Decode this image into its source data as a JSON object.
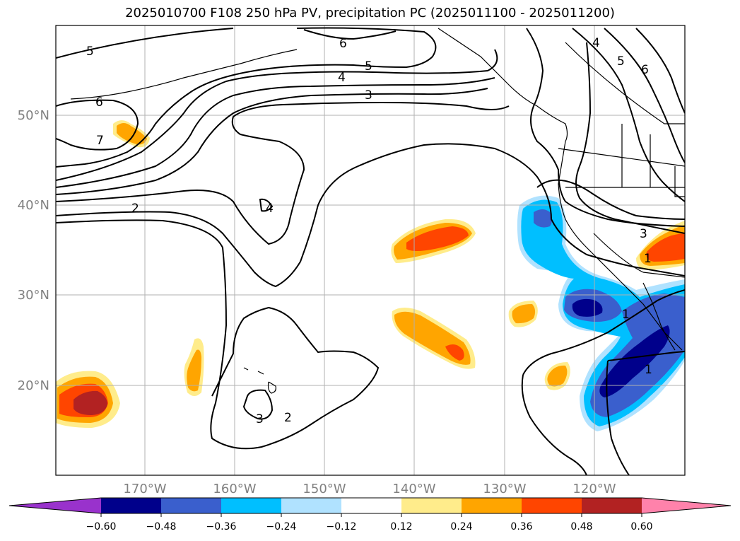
{
  "title": "2025010700 F108 250 hPa PV, precipitation PC (2025011100 - 2025011200)",
  "lat_labels": [
    "50°N",
    "40°N",
    "30°N",
    "20°N"
  ],
  "lon_labels": [
    "170°W",
    "160°W",
    "150°W",
    "140°W",
    "130°W",
    "120°W"
  ],
  "colorbar": {
    "ticks": [
      "−0.60",
      "−0.48",
      "−0.36",
      "−0.24",
      "−0.12",
      "0.12",
      "0.24",
      "0.36",
      "0.48",
      "0.60"
    ],
    "colors": [
      "#9932cc",
      "#00008b",
      "#3a5fcd",
      "#00bfff",
      "#b0e2ff",
      "#ffffff",
      "#ffec8b",
      "#ffa500",
      "#ff4500",
      "#b22222",
      "#ff82ab"
    ]
  },
  "contour_labels": [
    "5",
    "6",
    "5",
    "4",
    "3",
    "6",
    "7",
    "2",
    "4",
    "3",
    "2",
    "4",
    "5",
    "6",
    "3",
    "1",
    "1",
    "1"
  ]
}
